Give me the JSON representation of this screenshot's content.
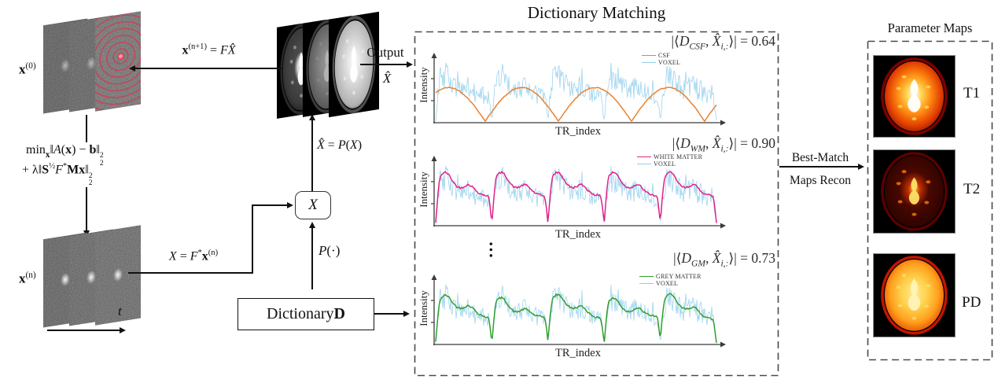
{
  "colors": {
    "axis": "#3a3a3a",
    "arrow": "#111111",
    "panel_border": "#4a4a4a",
    "text": "#1a1a1a",
    "csf_orange": "#E8822F",
    "voxel_blue": "#8ECDEB",
    "wm_magenta": "#E0218A",
    "gm_green": "#2FA02F"
  },
  "iterative_block": {
    "x0_label": [
      {
        "t": "x",
        "c": "b"
      },
      {
        "t": "(0)",
        "c": "sup"
      }
    ],
    "xn_label": [
      {
        "t": "x",
        "c": "b"
      },
      {
        "t": "(n)",
        "c": "sup"
      }
    ],
    "t_label": [
      {
        "t": "t",
        "c": "i"
      }
    ],
    "min_eq_line1": [
      {
        "t": "min"
      },
      {
        "t": "x",
        "c": "msub"
      },
      {
        "t": "‖"
      },
      {
        "t": "A",
        "c": "cal"
      },
      {
        "t": "("
      },
      {
        "t": "x",
        "c": "b"
      },
      {
        "t": ") − "
      },
      {
        "t": "b",
        "c": "b"
      },
      {
        "t": "‖"
      },
      {
        "t": "2|2",
        "c": "ss"
      }
    ],
    "min_eq_line2": [
      {
        "t": "+ λ‖"
      },
      {
        "t": "S",
        "c": "b"
      },
      {
        "t": "½",
        "c": "sup"
      },
      {
        "t": "F",
        "c": "cal"
      },
      {
        "t": "*",
        "c": "sup"
      },
      {
        "t": "M",
        "c": "b"
      },
      {
        "t": "x",
        "c": "b"
      },
      {
        "t": "‖"
      },
      {
        "t": "2|2",
        "c": "ss"
      }
    ],
    "update_eq": [
      {
        "t": "x",
        "c": "b"
      },
      {
        "t": "(n+1)",
        "c": "sup"
      },
      {
        "t": " = "
      },
      {
        "t": "F",
        "c": "cal"
      },
      {
        "t": "X̂",
        "c": "cal"
      }
    ],
    "recon_eq": [
      {
        "t": "X",
        "c": "cal"
      },
      {
        "t": " = "
      },
      {
        "t": "F",
        "c": "cal"
      },
      {
        "t": "*",
        "c": "sup"
      },
      {
        "t": "x",
        "c": "b"
      },
      {
        "t": "(n)",
        "c": "sup"
      }
    ],
    "proj_eq": [
      {
        "t": "X̂",
        "c": "cal"
      },
      {
        "t": " = "
      },
      {
        "t": "P",
        "c": "cal"
      },
      {
        "t": "("
      },
      {
        "t": "X",
        "c": "cal"
      },
      {
        "t": ")"
      }
    ],
    "proj_op": [
      {
        "t": "P",
        "c": "cal"
      },
      {
        "t": "(·)"
      }
    ],
    "x_box": [
      {
        "t": "X",
        "c": "cal"
      }
    ],
    "dict_box": [
      {
        "t": "Dictionary "
      },
      {
        "t": "D",
        "c": "b"
      }
    ],
    "output_label": "Output",
    "output_x": [
      {
        "t": "X̂",
        "c": "cal"
      }
    ]
  },
  "center_stack": {
    "brains": [
      {
        "rim": "#2a2a2a",
        "stops": [
          [
            "0%",
            "#f2f2f2"
          ],
          [
            "16%",
            "#d8d8d8"
          ],
          [
            "30%",
            "#4a4a4a"
          ],
          [
            "72%",
            "#3a3a3a"
          ],
          [
            "100%",
            "#161616"
          ]
        ],
        "core": "#ffffff",
        "coreScale": 0.85,
        "spot": "#9a9a9a"
      },
      {
        "rim": "#3a3a3a",
        "stops": [
          [
            "0%",
            "#9a9a9a"
          ],
          [
            "42%",
            "#7d7d7d"
          ],
          [
            "88%",
            "#565656"
          ],
          [
            "100%",
            "#262626"
          ]
        ],
        "core": "#b5b5b5",
        "coreScale": 0.8,
        "spot": "#8a8a8a"
      },
      {
        "rim": "#4f4f4f",
        "stops": [
          [
            "0%",
            "#ffffff"
          ],
          [
            "34%",
            "#dedede"
          ],
          [
            "80%",
            "#b2b2b2"
          ],
          [
            "100%",
            "#303030"
          ]
        ],
        "core": "#ffffff",
        "coreScale": 0.9,
        "spot": "#e8e8e8"
      }
    ]
  },
  "dictionary_matching": {
    "title": "Dictionary Matching",
    "dots": "…"
  },
  "chart_data": [
    {
      "type": "line",
      "xlabel": "TR_index",
      "ylabel": "Intensity",
      "grid": false,
      "legend_position": "top-right",
      "segments": 5,
      "x_range": [
        0,
        365
      ],
      "match_value": 0.64,
      "match_label_runs": [
        {
          "t": "|⟨"
        },
        {
          "t": "D",
          "c": "cal"
        },
        {
          "t": "CSF",
          "c": "sub i"
        },
        {
          "t": ", "
        },
        {
          "t": "X̂",
          "c": "cal"
        },
        {
          "t": "i,:",
          "c": "sub i"
        },
        {
          "t": "⟩| = 0.64"
        }
      ],
      "series": [
        {
          "name": "CSF",
          "color": "#E8822F",
          "role": "dictionary-atom",
          "shape": "arches"
        },
        {
          "name": "VOXEL",
          "color": "#8ECDEB",
          "role": "measured-signal",
          "shape": "noisy"
        }
      ]
    },
    {
      "type": "line",
      "xlabel": "TR_index",
      "ylabel": "Intensity",
      "grid": false,
      "legend_position": "top-right",
      "segments": 5,
      "x_range": [
        0,
        365
      ],
      "match_value": 0.9,
      "match_label_runs": [
        {
          "t": "|⟨"
        },
        {
          "t": "D",
          "c": "cal"
        },
        {
          "t": "WM",
          "c": "sub i"
        },
        {
          "t": ", "
        },
        {
          "t": "X̂",
          "c": "cal"
        },
        {
          "t": "i,:",
          "c": "sub i"
        },
        {
          "t": "⟩| = 0.90"
        }
      ],
      "series": [
        {
          "name": "WHITE MATTER",
          "color": "#E0218A",
          "role": "dictionary-atom",
          "shape": "envelope"
        },
        {
          "name": "VOXEL",
          "color": "#8ECDEB",
          "role": "measured-signal",
          "shape": "noisy"
        }
      ]
    },
    {
      "type": "line",
      "xlabel": "TR_index",
      "ylabel": "Intensity",
      "grid": false,
      "legend_position": "top-right",
      "segments": 5,
      "x_range": [
        0,
        365
      ],
      "match_value": 0.73,
      "match_label_runs": [
        {
          "t": "|⟨"
        },
        {
          "t": "D",
          "c": "cal"
        },
        {
          "t": "GM",
          "c": "sub i"
        },
        {
          "t": ", "
        },
        {
          "t": "X̂",
          "c": "cal"
        },
        {
          "t": "i,:",
          "c": "sub i"
        },
        {
          "t": "⟩| = 0.73"
        }
      ],
      "series": [
        {
          "name": "GREY MATTER",
          "color": "#2FA02F",
          "role": "dictionary-atom",
          "shape": "envelope-gm"
        },
        {
          "name": "VOXEL",
          "color": "#8ECDEB",
          "role": "measured-signal",
          "shape": "noisy"
        }
      ]
    }
  ],
  "parameter_maps": {
    "title": "Parameter Maps",
    "flow_label_top": "Best-Match",
    "flow_label_bottom": "Maps Recon",
    "maps": [
      {
        "label": "T1",
        "palette": {
          "rim": "#7E0000",
          "stops": [
            [
              "0%",
              "#ffffff"
            ],
            [
              "22%",
              "#ffd24d"
            ],
            [
              "46%",
              "#ff8a12"
            ],
            [
              "74%",
              "#e03c00"
            ],
            [
              "100%",
              "#6e0a00"
            ]
          ],
          "core": "#ffffff",
          "coreScale": 1.0,
          "spot": "#ffd95e"
        }
      },
      {
        "label": "T2",
        "palette": {
          "rim": "#5a0000",
          "stops": [
            [
              "0%",
              "#ffd24d"
            ],
            [
              "16%",
              "#c03000"
            ],
            [
              "40%",
              "#4a0800"
            ],
            [
              "78%",
              "#330400"
            ],
            [
              "100%",
              "#1c0100"
            ]
          ],
          "core": "#ffe066",
          "coreScale": 0.8,
          "spot": "#ff7a00"
        }
      },
      {
        "label": "PD",
        "palette": {
          "rim": "#c21500",
          "stops": [
            [
              "0%",
              "#ffeb99"
            ],
            [
              "34%",
              "#ffd24d"
            ],
            [
              "66%",
              "#ffa01e"
            ],
            [
              "88%",
              "#e85a00"
            ],
            [
              "100%",
              "#7e0a00"
            ]
          ],
          "core": "#fff3b8",
          "coreScale": 0.95,
          "spot": "#ffdd66"
        }
      }
    ]
  }
}
